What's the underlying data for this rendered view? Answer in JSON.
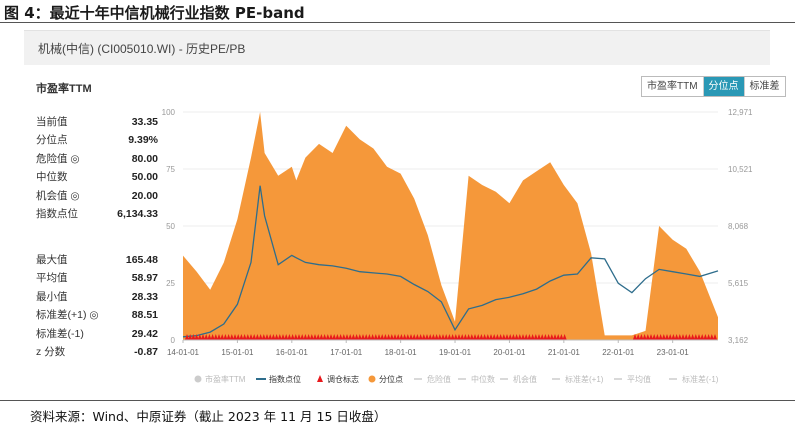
{
  "figure_title": "图 4：最近十年中信机械行业指数 PE-band",
  "header": {
    "title": "机械(中信) (CI005010.WI) - 历史PE/PB"
  },
  "section_title": "市盈率TTM",
  "buttons": [
    {
      "label": "市盈率TTM",
      "active": false
    },
    {
      "label": "分位点",
      "active": true
    },
    {
      "label": "标准差",
      "active": false
    }
  ],
  "stats_top": [
    {
      "label": "当前值",
      "value": "33.35"
    },
    {
      "label": "分位点",
      "value": "9.39%"
    },
    {
      "label": "危险值 ◎",
      "value": "80.00"
    },
    {
      "label": "中位数",
      "value": "50.00"
    },
    {
      "label": "机会值 ◎",
      "value": "20.00"
    },
    {
      "label": "指数点位",
      "value": "6,134.33"
    }
  ],
  "stats_bottom": [
    {
      "label": "最大值",
      "value": "165.48"
    },
    {
      "label": "平均值",
      "value": "58.97"
    },
    {
      "label": "最小值",
      "value": "28.33"
    },
    {
      "label": "标准差(+1) ◎",
      "value": "88.51"
    },
    {
      "label": "标准差(-1)",
      "value": "29.42"
    },
    {
      "label": "z 分数",
      "value": "-0.87"
    }
  ],
  "source": "资料来源：Wind、中原证券（截止 2023 年 11 月 15 日收盘）",
  "colors": {
    "area": "#f5983a",
    "line": "#2e6d8c",
    "marker": "#e8191c",
    "active_button": "#2a98b5"
  },
  "chart_data": {
    "type": "area",
    "x": [
      "2014-01",
      "2014-04",
      "2014-07",
      "2014-10",
      "2015-01",
      "2015-04",
      "2015-06",
      "2015-07",
      "2015-10",
      "2016-01",
      "2016-02",
      "2016-04",
      "2016-07",
      "2016-10",
      "2017-01",
      "2017-04",
      "2017-07",
      "2017-10",
      "2018-01",
      "2018-04",
      "2018-07",
      "2018-10",
      "2019-01",
      "2019-04",
      "2019-07",
      "2019-10",
      "2020-01",
      "2020-04",
      "2020-07",
      "2020-10",
      "2021-01",
      "2021-04",
      "2021-07",
      "2021-10",
      "2022-01",
      "2022-04",
      "2022-07",
      "2022-10",
      "2023-01",
      "2023-04",
      "2023-07",
      "2023-11"
    ],
    "series": [
      {
        "name": "分位点",
        "axis": "left",
        "type": "area",
        "values": [
          37,
          30,
          22,
          34,
          53,
          80,
          100,
          82,
          72,
          76,
          70,
          80,
          86,
          82,
          94,
          88,
          84,
          76,
          73,
          62,
          46,
          24,
          8,
          72,
          68,
          65,
          60,
          70,
          74,
          78,
          68,
          60,
          38,
          2,
          2,
          2,
          4,
          50,
          44,
          40,
          30,
          10
        ]
      },
      {
        "name": "指数点位",
        "axis": "right",
        "type": "line",
        "values": [
          3300,
          3350,
          3500,
          3850,
          4700,
          6500,
          9800,
          8500,
          6400,
          6800,
          6700,
          6500,
          6400,
          6350,
          6250,
          6100,
          6050,
          6000,
          5900,
          5550,
          5250,
          4800,
          3600,
          4500,
          4650,
          4900,
          5000,
          5150,
          5350,
          5700,
          5950,
          6000,
          6700,
          6650,
          5600,
          5200,
          5800,
          6200,
          6100,
          6000,
          5900,
          6134
        ]
      },
      {
        "name": "调仓标志",
        "type": "marker"
      }
    ],
    "x_tick_labels": [
      "14-01-01",
      "15-01-01",
      "16-01-01",
      "17-01-01",
      "18-01-01",
      "19-01-01",
      "20-01-01",
      "21-01-01",
      "22-01-01",
      "23-01-01"
    ],
    "y_left_ticks": [
      "0",
      "25",
      "50",
      "75",
      "100"
    ],
    "y_right_ticks": [
      "3,162",
      "5,615",
      "8,068",
      "10,521",
      "12,971"
    ],
    "ylim_left": [
      0,
      100
    ],
    "ylim_right": [
      3162,
      12971
    ],
    "legend": [
      {
        "label": "市盈率TTM",
        "enabled": false
      },
      {
        "label": "指数点位",
        "enabled": true
      },
      {
        "label": "调仓标志",
        "enabled": true
      },
      {
        "label": "分位点",
        "enabled": true
      },
      {
        "label": "危险值",
        "enabled": false
      },
      {
        "label": "中位数",
        "enabled": false
      },
      {
        "label": "机会值",
        "enabled": false
      },
      {
        "label": "标准差(+1)",
        "enabled": false
      },
      {
        "label": "平均值",
        "enabled": false
      },
      {
        "label": "标准差(-1)",
        "enabled": false
      }
    ],
    "legend_position": "bottom"
  }
}
